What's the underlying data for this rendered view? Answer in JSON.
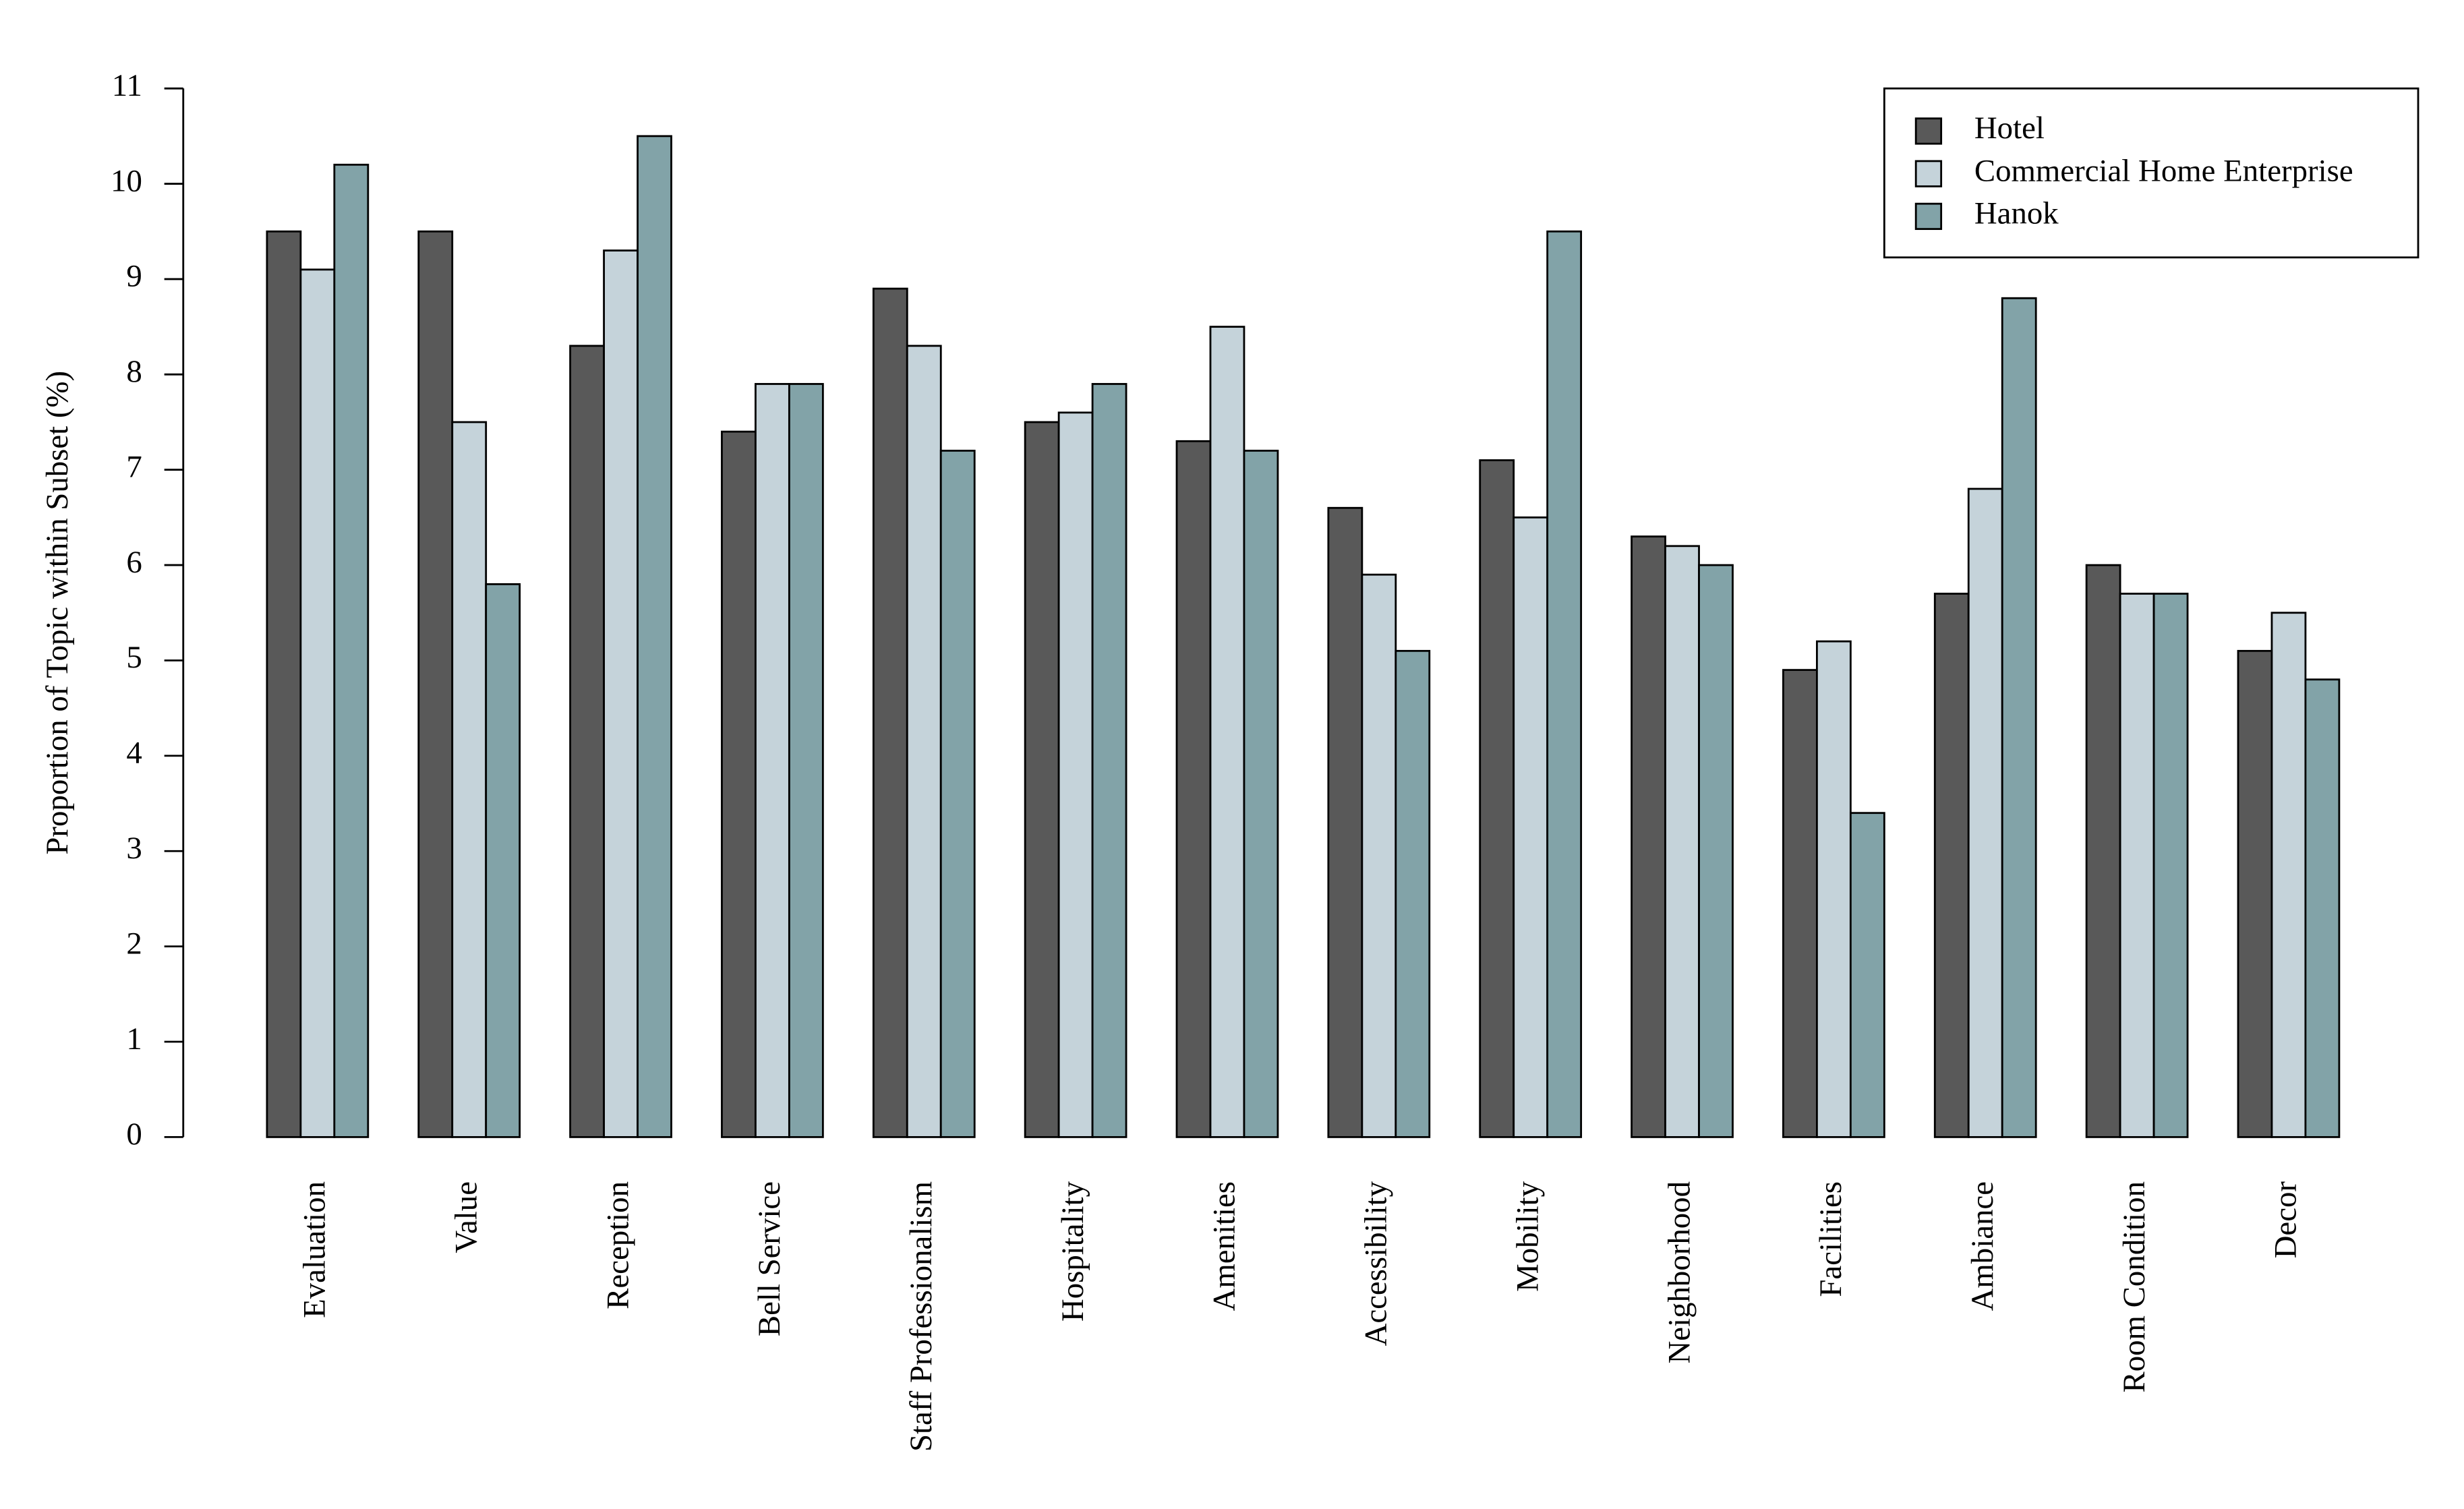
{
  "chart_data": {
    "type": "bar",
    "y_label": "Proportion of Topic within Subset (%)",
    "categories": [
      "Evaluation",
      "Value",
      "Reception",
      "Bell Service",
      "Staff Professionalism",
      "Hospitality",
      "Amenities",
      "Accessibility",
      "Mobility",
      "Neighborhood",
      "Facilities",
      "Ambiance",
      "Room Condition",
      "Decor"
    ],
    "series": [
      {
        "name": "Hotel",
        "color": "#595959",
        "values": [
          9.5,
          9.5,
          8.3,
          7.4,
          8.9,
          7.5,
          7.3,
          6.6,
          7.1,
          6.3,
          4.9,
          5.7,
          6.0,
          5.1
        ]
      },
      {
        "name": "Commercial Home Enterprise",
        "color": "#c5d3da",
        "values": [
          9.1,
          7.5,
          9.3,
          7.9,
          8.3,
          7.6,
          8.5,
          5.9,
          6.5,
          6.2,
          5.2,
          6.8,
          5.7,
          5.5
        ]
      },
      {
        "name": "Hanok",
        "color": "#82a3a8",
        "values": [
          10.2,
          5.8,
          10.5,
          7.9,
          7.2,
          7.9,
          7.2,
          5.1,
          9.5,
          6.0,
          3.4,
          8.8,
          5.7,
          4.8
        ]
      }
    ],
    "ylim": [
      0,
      11
    ],
    "yticks": [
      0,
      1,
      2,
      3,
      4,
      5,
      6,
      7,
      8,
      9,
      10,
      11
    ],
    "legend": "top-right"
  }
}
